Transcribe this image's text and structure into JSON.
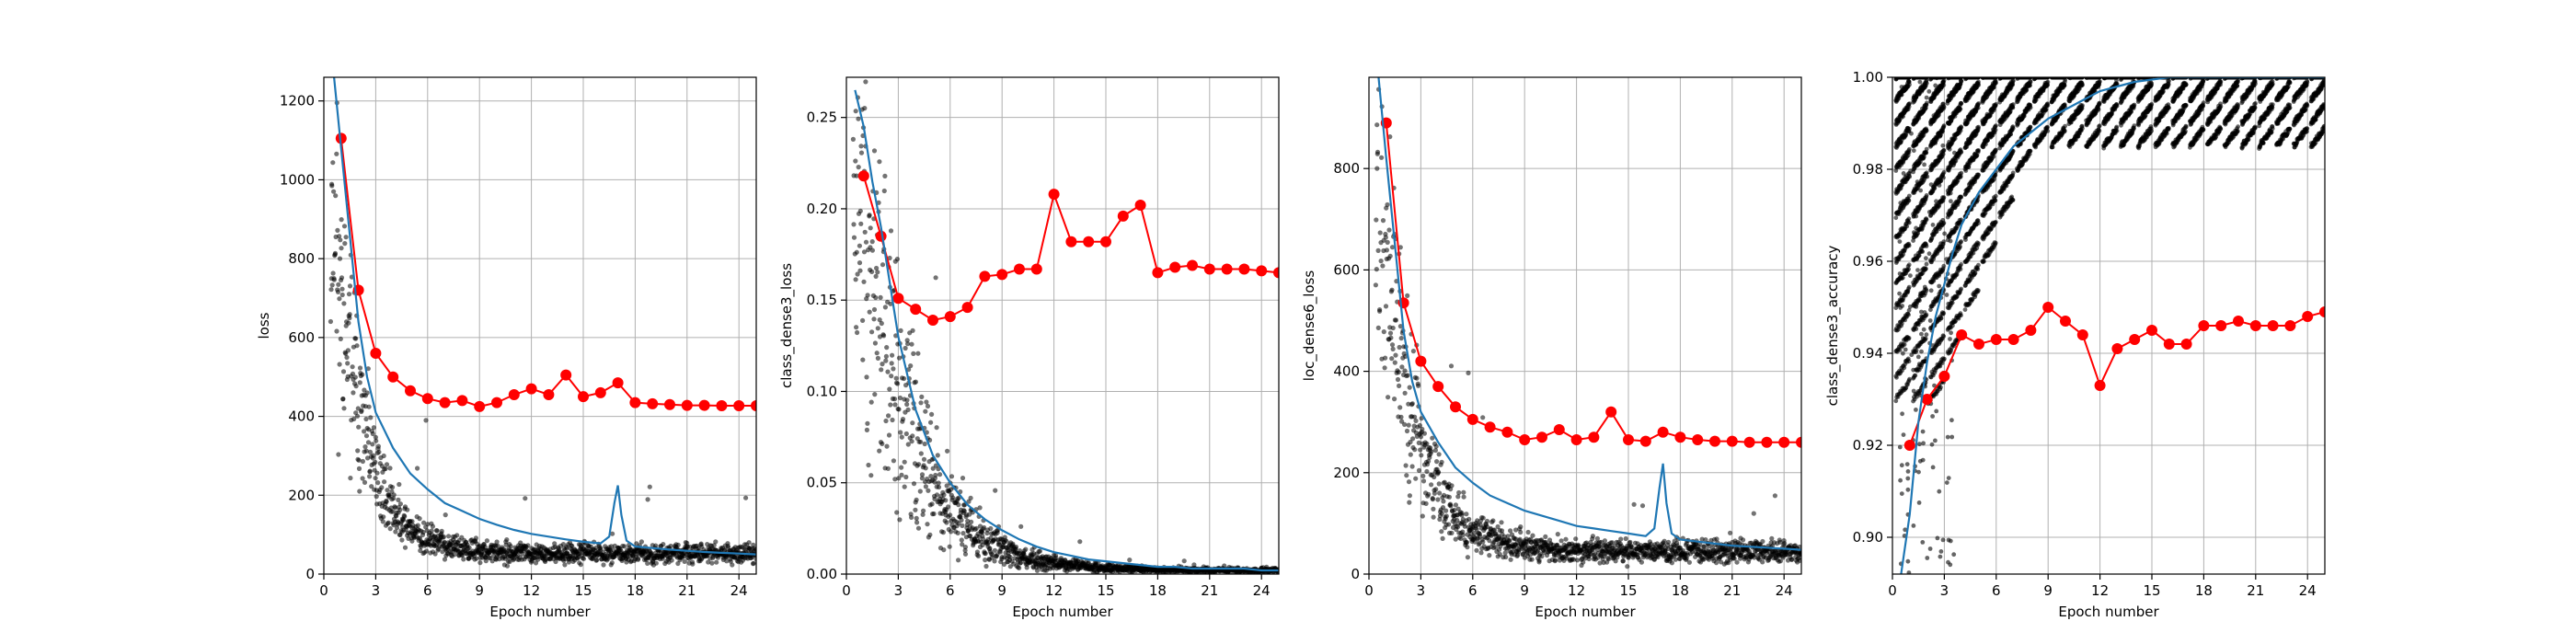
{
  "colors": {
    "validation": "#ff0000",
    "training": "#1f77b4",
    "batch": "#000000",
    "grid": "#b0b0b0"
  },
  "chart_data": [
    {
      "type": "line",
      "ylabel": "loss",
      "xlabel": "Epoch number",
      "xlim": [
        0,
        25
      ],
      "ylim": [
        0,
        1260
      ],
      "xticks": [
        0,
        3,
        6,
        9,
        12,
        15,
        18,
        21,
        24
      ],
      "yticks": [
        0,
        200,
        400,
        600,
        800,
        1000,
        1200
      ],
      "yticks_decimals": 0,
      "grid": true,
      "series": [
        {
          "style": "line-markers",
          "color": "#ff0000",
          "x": [
            1,
            2,
            3,
            4,
            5,
            6,
            7,
            8,
            9,
            10,
            11,
            12,
            13,
            14,
            15,
            16,
            17,
            18,
            19,
            20,
            21,
            22,
            23,
            24,
            25
          ],
          "y": [
            1105,
            720,
            560,
            500,
            465,
            445,
            435,
            440,
            425,
            435,
            455,
            470,
            455,
            505,
            450,
            460,
            485,
            435,
            432,
            430,
            428,
            428,
            427,
            427,
            427
          ]
        },
        {
          "style": "line",
          "color": "#1f77b4",
          "x": [
            0.5,
            1,
            1.5,
            2,
            2.5,
            3,
            4,
            5,
            6,
            7,
            8,
            9,
            10,
            11,
            12,
            13,
            14,
            15,
            16,
            16.5,
            16.8,
            17,
            17.2,
            17.5,
            18,
            19,
            20,
            21,
            22,
            23,
            24,
            25
          ],
          "y": [
            1300,
            1080,
            860,
            640,
            500,
            410,
            320,
            255,
            215,
            180,
            160,
            140,
            125,
            112,
            102,
            95,
            88,
            82,
            78,
            95,
            180,
            225,
            150,
            85,
            70,
            66,
            62,
            59,
            56,
            54,
            52,
            50
          ]
        },
        {
          "style": "scatter",
          "color": "#000000",
          "generator": {
            "x_start": 0.4,
            "x_end": 25,
            "n": 1300,
            "a": 52,
            "b": 1200,
            "k": 0.58,
            "spread": 0.38,
            "seed": 11,
            "outlier_rate": 0.012,
            "outlier_max": 4.0
          }
        }
      ]
    },
    {
      "type": "line",
      "ylabel": "class_dense3_loss",
      "xlabel": "Epoch number",
      "xlim": [
        0,
        25
      ],
      "ylim": [
        0,
        0.272
      ],
      "xticks": [
        0,
        3,
        6,
        9,
        12,
        15,
        18,
        21,
        24
      ],
      "yticks": [
        0.0,
        0.05,
        0.1,
        0.15,
        0.2,
        0.25
      ],
      "yticks_decimals": 2,
      "grid": true,
      "series": [
        {
          "style": "line-markers",
          "color": "#ff0000",
          "x": [
            1,
            2,
            3,
            4,
            5,
            6,
            7,
            8,
            9,
            10,
            11,
            12,
            13,
            14,
            15,
            16,
            17,
            18,
            19,
            20,
            21,
            22,
            23,
            24,
            25
          ],
          "y": [
            0.218,
            0.185,
            0.151,
            0.145,
            0.139,
            0.141,
            0.146,
            0.163,
            0.164,
            0.167,
            0.167,
            0.208,
            0.182,
            0.182,
            0.182,
            0.196,
            0.202,
            0.165,
            0.168,
            0.169,
            0.167,
            0.167,
            0.167,
            0.166,
            0.165
          ]
        },
        {
          "style": "line",
          "color": "#1f77b4",
          "x": [
            0.5,
            1,
            1.5,
            2,
            2.5,
            3,
            4,
            5,
            6,
            7,
            8,
            9,
            10,
            11,
            12,
            13,
            14,
            15,
            16,
            17,
            18,
            19,
            20,
            21,
            22,
            23,
            24,
            25
          ],
          "y": [
            0.265,
            0.245,
            0.215,
            0.19,
            0.16,
            0.13,
            0.09,
            0.065,
            0.05,
            0.038,
            0.03,
            0.024,
            0.019,
            0.015,
            0.012,
            0.01,
            0.008,
            0.007,
            0.006,
            0.005,
            0.004,
            0.004,
            0.003,
            0.003,
            0.003,
            0.003,
            0.002,
            0.002
          ]
        },
        {
          "style": "scatter",
          "color": "#000000",
          "generator": {
            "x_start": 0.4,
            "x_end": 25,
            "n": 1300,
            "a": 0.002,
            "b": 0.28,
            "k": 0.35,
            "spread": 0.55,
            "seed": 23,
            "outlier_rate": 0.012,
            "outlier_max": 3.0
          }
        }
      ]
    },
    {
      "type": "line",
      "ylabel": "loc_dense6_loss",
      "xlabel": "Epoch number",
      "xlim": [
        0,
        25
      ],
      "ylim": [
        0,
        980
      ],
      "xticks": [
        0,
        3,
        6,
        9,
        12,
        15,
        18,
        21,
        24
      ],
      "yticks": [
        0,
        200,
        400,
        600,
        800
      ],
      "yticks_decimals": 0,
      "grid": true,
      "series": [
        {
          "style": "line-markers",
          "color": "#ff0000",
          "x": [
            1,
            2,
            3,
            4,
            5,
            6,
            7,
            8,
            9,
            10,
            11,
            12,
            13,
            14,
            15,
            16,
            17,
            18,
            19,
            20,
            21,
            22,
            23,
            24,
            25
          ],
          "y": [
            890,
            535,
            420,
            370,
            330,
            305,
            290,
            280,
            265,
            270,
            285,
            265,
            270,
            320,
            265,
            262,
            280,
            270,
            265,
            262,
            262,
            260,
            260,
            260,
            260
          ]
        },
        {
          "style": "line",
          "color": "#1f77b4",
          "x": [
            0.5,
            1,
            1.5,
            2,
            2.5,
            3,
            4,
            5,
            6,
            7,
            8,
            9,
            10,
            11,
            12,
            13,
            14,
            15,
            16,
            16.5,
            16.8,
            17,
            17.2,
            17.5,
            18,
            19,
            20,
            21,
            22,
            23,
            24,
            25
          ],
          "y": [
            1000,
            820,
            650,
            480,
            380,
            320,
            260,
            210,
            180,
            155,
            140,
            125,
            115,
            105,
            95,
            90,
            85,
            80,
            75,
            90,
            170,
            218,
            140,
            80,
            68,
            64,
            60,
            56,
            54,
            52,
            50,
            48
          ]
        },
        {
          "style": "scatter",
          "color": "#000000",
          "generator": {
            "x_start": 0.4,
            "x_end": 25,
            "n": 1300,
            "a": 45,
            "b": 980,
            "k": 0.52,
            "spread": 0.4,
            "seed": 37,
            "outlier_rate": 0.012,
            "outlier_max": 4.0
          }
        }
      ]
    },
    {
      "type": "line",
      "ylabel": "class_dense3_accuracy",
      "xlabel": "Epoch number",
      "xlim": [
        0,
        25
      ],
      "ylim": [
        0.892,
        1.0
      ],
      "xticks": [
        0,
        3,
        6,
        9,
        12,
        15,
        18,
        21,
        24
      ],
      "yticks": [
        0.9,
        0.92,
        0.94,
        0.96,
        0.98,
        1.0
      ],
      "yticks_decimals": 2,
      "grid": true,
      "series": [
        {
          "style": "line-markers",
          "color": "#ff0000",
          "x": [
            1,
            2,
            3,
            4,
            5,
            6,
            7,
            8,
            9,
            10,
            11,
            12,
            13,
            14,
            15,
            16,
            17,
            18,
            19,
            20,
            21,
            22,
            23,
            24,
            25
          ],
          "y": [
            0.92,
            0.93,
            0.935,
            0.944,
            0.942,
            0.943,
            0.943,
            0.945,
            0.95,
            0.947,
            0.944,
            0.933,
            0.941,
            0.943,
            0.945,
            0.942,
            0.942,
            0.946,
            0.946,
            0.947,
            0.946,
            0.946,
            0.946,
            0.948,
            0.949
          ]
        },
        {
          "style": "line",
          "color": "#1f77b4",
          "x": [
            0.5,
            1,
            1.5,
            2,
            2.5,
            3,
            3.5,
            4,
            5,
            6,
            7,
            8,
            9,
            10,
            11,
            12,
            13,
            14,
            15,
            16,
            17,
            18,
            19,
            20,
            21,
            22,
            23,
            24,
            25
          ],
          "y": [
            0.892,
            0.905,
            0.925,
            0.938,
            0.948,
            0.955,
            0.962,
            0.968,
            0.975,
            0.98,
            0.985,
            0.988,
            0.991,
            0.993,
            0.995,
            0.997,
            0.998,
            0.999,
            0.9995,
            1.0,
            1.0,
            1.0,
            1.0,
            1.0,
            1.0,
            1.0,
            1.0,
            1.0,
            1.0
          ]
        },
        {
          "style": "streaks",
          "color": "#000000",
          "generator": {
            "seed": 53,
            "epochs": 25,
            "per_epoch": 60,
            "levels": [
              1.0,
              0.995,
              0.99,
              0.985,
              0.98,
              0.975,
              0.97,
              0.965,
              0.96,
              0.955,
              0.95,
              0.945,
              0.94,
              0.935,
              0.93
            ],
            "level_decay": 0.55
          }
        }
      ]
    }
  ]
}
